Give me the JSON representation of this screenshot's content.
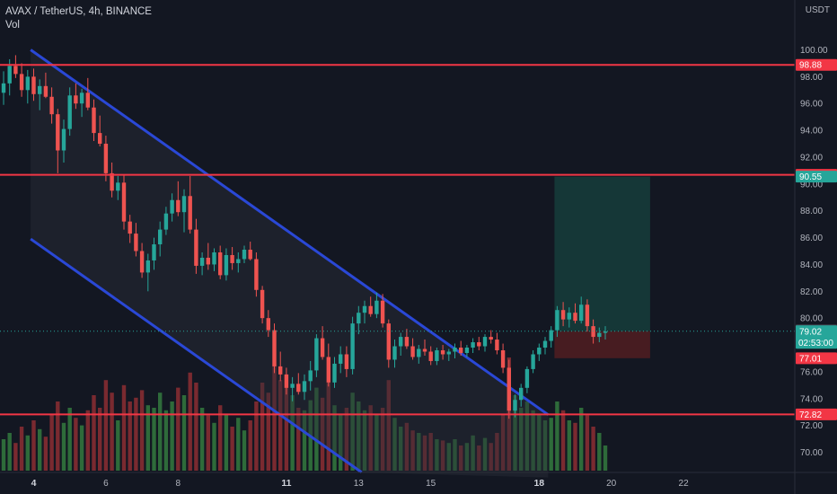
{
  "header": {
    "symbol": "AVAX / TetherUS, 4h, BINANCE",
    "indicator": "Vol"
  },
  "currency_label": "USDT",
  "colors": {
    "background": "#131722",
    "up": "#26a69a",
    "down": "#ef5350",
    "channel": "#2a48d6",
    "hline": "#f23645",
    "target_zone": "#163b3a",
    "stop_zone": "#4a1c22",
    "vol_up": "#2e6b3a",
    "vol_down": "#7a2a30"
  },
  "chart_data": {
    "type": "candlestick",
    "title": "AVAX / TetherUS, 4h, BINANCE",
    "ylim": [
      69,
      101
    ],
    "y_ticks": [
      "100.00",
      "98.00",
      "96.00",
      "94.00",
      "92.00",
      "90.00",
      "88.00",
      "86.00",
      "84.00",
      "82.00",
      "80.00",
      "78.00",
      "76.00",
      "74.00",
      "72.00",
      "70.00"
    ],
    "x_tick_labels": [
      {
        "label": "4",
        "bar": 5,
        "bold": true
      },
      {
        "label": "6",
        "bar": 17,
        "bold": false
      },
      {
        "label": "8",
        "bar": 29,
        "bold": false
      },
      {
        "label": "11",
        "bar": 47,
        "bold": true
      },
      {
        "label": "13",
        "bar": 59,
        "bold": false
      },
      {
        "label": "15",
        "bar": 71,
        "bold": false
      },
      {
        "label": "18",
        "bar": 89,
        "bold": true
      },
      {
        "label": "20",
        "bar": 101,
        "bold": false
      },
      {
        "label": "22",
        "bar": 113,
        "bold": false
      }
    ],
    "ohlc": [
      [
        96.8,
        98.4,
        95.9,
        97.5
      ],
      [
        97.5,
        99.3,
        96.6,
        98.8
      ],
      [
        98.8,
        99.6,
        97.9,
        98.2
      ],
      [
        98.2,
        99.0,
        96.5,
        97.0
      ],
      [
        97.0,
        98.5,
        96.0,
        98.0
      ],
      [
        98.0,
        98.6,
        96.2,
        96.7
      ],
      [
        96.7,
        97.8,
        95.5,
        97.3
      ],
      [
        97.3,
        98.3,
        96.4,
        96.5
      ],
      [
        96.5,
        97.2,
        94.5,
        95.2
      ],
      [
        95.2,
        95.6,
        90.8,
        92.5
      ],
      [
        92.5,
        94.8,
        91.6,
        94.1
      ],
      [
        94.1,
        97.2,
        93.6,
        96.6
      ],
      [
        96.6,
        97.5,
        95.6,
        96.0
      ],
      [
        96.0,
        97.1,
        95.0,
        96.8
      ],
      [
        96.8,
        97.9,
        95.5,
        95.7
      ],
      [
        95.7,
        96.3,
        93.2,
        93.8
      ],
      [
        93.8,
        95.1,
        92.8,
        93.0
      ],
      [
        93.0,
        93.6,
        90.2,
        90.8
      ],
      [
        90.8,
        91.6,
        89.0,
        89.5
      ],
      [
        89.5,
        90.6,
        88.8,
        90.1
      ],
      [
        90.1,
        90.7,
        86.6,
        87.2
      ],
      [
        87.2,
        87.7,
        85.6,
        86.3
      ],
      [
        86.3,
        87.1,
        84.6,
        85.0
      ],
      [
        85.0,
        85.6,
        83.0,
        83.4
      ],
      [
        83.4,
        84.8,
        82.0,
        84.3
      ],
      [
        84.3,
        86.0,
        83.6,
        85.5
      ],
      [
        85.5,
        87.2,
        84.6,
        86.6
      ],
      [
        86.6,
        88.3,
        86.2,
        87.8
      ],
      [
        87.8,
        89.3,
        87.2,
        88.8
      ],
      [
        88.8,
        90.2,
        87.6,
        87.9
      ],
      [
        87.9,
        89.6,
        86.4,
        89.1
      ],
      [
        89.1,
        90.6,
        86.3,
        86.6
      ],
      [
        86.6,
        87.4,
        83.3,
        83.9
      ],
      [
        83.9,
        84.9,
        83.2,
        84.5
      ],
      [
        84.5,
        85.6,
        83.6,
        84.0
      ],
      [
        84.0,
        85.2,
        83.5,
        84.9
      ],
      [
        84.9,
        85.4,
        82.9,
        83.2
      ],
      [
        83.2,
        85.2,
        82.8,
        84.7
      ],
      [
        84.7,
        85.3,
        83.6,
        84.1
      ],
      [
        84.1,
        84.9,
        83.4,
        84.4
      ],
      [
        84.4,
        85.4,
        84.1,
        85.1
      ],
      [
        85.1,
        85.7,
        84.3,
        84.4
      ],
      [
        84.4,
        84.9,
        81.6,
        82.1
      ],
      [
        82.1,
        82.4,
        79.6,
        80.0
      ],
      [
        80.0,
        80.6,
        78.6,
        79.1
      ],
      [
        79.1,
        79.6,
        75.9,
        76.4
      ],
      [
        76.4,
        77.5,
        75.3,
        75.8
      ],
      [
        75.8,
        76.3,
        74.3,
        74.8
      ],
      [
        74.8,
        75.6,
        73.8,
        75.1
      ],
      [
        75.1,
        75.9,
        74.3,
        74.5
      ],
      [
        74.5,
        75.8,
        73.9,
        75.3
      ],
      [
        75.3,
        76.8,
        74.6,
        76.1
      ],
      [
        76.1,
        78.8,
        75.6,
        78.5
      ],
      [
        78.5,
        79.4,
        76.9,
        77.1
      ],
      [
        77.1,
        78.1,
        74.9,
        75.2
      ],
      [
        75.2,
        77.1,
        74.8,
        76.6
      ],
      [
        76.6,
        77.9,
        75.9,
        77.3
      ],
      [
        77.3,
        77.9,
        75.6,
        76.2
      ],
      [
        76.2,
        80.1,
        75.8,
        79.6
      ],
      [
        79.6,
        80.9,
        78.8,
        80.4
      ],
      [
        80.4,
        81.3,
        79.6,
        80.9
      ],
      [
        80.9,
        81.6,
        80.1,
        80.3
      ],
      [
        80.3,
        81.9,
        80.0,
        81.3
      ],
      [
        81.3,
        81.8,
        79.3,
        79.6
      ],
      [
        79.6,
        79.9,
        76.3,
        76.9
      ],
      [
        76.9,
        78.4,
        76.3,
        77.9
      ],
      [
        77.9,
        78.9,
        77.2,
        78.6
      ],
      [
        78.6,
        79.2,
        77.7,
        77.9
      ],
      [
        77.9,
        78.5,
        76.9,
        77.1
      ],
      [
        77.1,
        78.0,
        76.6,
        77.7
      ],
      [
        77.7,
        78.4,
        77.2,
        77.5
      ],
      [
        77.5,
        77.9,
        76.5,
        76.8
      ],
      [
        76.8,
        77.8,
        76.5,
        77.6
      ],
      [
        77.6,
        78.0,
        76.9,
        77.3
      ],
      [
        77.3,
        77.7,
        76.8,
        77.5
      ],
      [
        77.5,
        78.1,
        77.0,
        77.8
      ],
      [
        77.8,
        78.3,
        77.2,
        77.4
      ],
      [
        77.4,
        78.0,
        77.1,
        77.8
      ],
      [
        77.8,
        78.5,
        77.4,
        78.2
      ],
      [
        78.2,
        78.6,
        77.6,
        77.9
      ],
      [
        77.9,
        78.8,
        77.5,
        78.6
      ],
      [
        78.6,
        79.1,
        78.1,
        78.4
      ],
      [
        78.4,
        78.9,
        77.3,
        77.6
      ],
      [
        77.6,
        78.1,
        75.9,
        76.3
      ],
      [
        76.3,
        76.9,
        72.5,
        73.1
      ],
      [
        73.1,
        74.3,
        72.6,
        73.9
      ],
      [
        73.9,
        75.1,
        73.4,
        74.8
      ],
      [
        74.8,
        76.4,
        74.4,
        76.2
      ],
      [
        76.2,
        77.6,
        75.9,
        77.3
      ],
      [
        77.3,
        78.1,
        76.8,
        77.8
      ],
      [
        77.8,
        78.6,
        77.3,
        78.3
      ],
      [
        78.3,
        79.4,
        77.8,
        79.1
      ],
      [
        79.1,
        80.9,
        78.6,
        80.6
      ],
      [
        80.6,
        81.2,
        79.4,
        79.9
      ],
      [
        79.9,
        80.8,
        79.3,
        80.4
      ],
      [
        80.4,
        81.1,
        79.6,
        79.8
      ],
      [
        79.8,
        81.6,
        79.6,
        81.0
      ],
      [
        81.0,
        81.4,
        79.0,
        79.4
      ],
      [
        79.4,
        79.9,
        78.1,
        78.6
      ],
      [
        78.6,
        79.3,
        78.2,
        78.9
      ],
      [
        78.9,
        79.4,
        78.4,
        79.0
      ]
    ],
    "volume_rel": [
      0.25,
      0.3,
      0.22,
      0.35,
      0.28,
      0.4,
      0.33,
      0.27,
      0.45,
      0.55,
      0.38,
      0.5,
      0.42,
      0.36,
      0.48,
      0.6,
      0.5,
      0.72,
      0.62,
      0.4,
      0.68,
      0.55,
      0.58,
      0.64,
      0.52,
      0.5,
      0.62,
      0.48,
      0.55,
      0.66,
      0.6,
      0.78,
      0.7,
      0.5,
      0.44,
      0.38,
      0.52,
      0.45,
      0.35,
      0.42,
      0.32,
      0.4,
      0.55,
      0.7,
      0.62,
      0.85,
      0.72,
      0.75,
      0.6,
      0.5,
      0.48,
      0.56,
      0.66,
      0.58,
      0.7,
      0.52,
      0.45,
      0.5,
      0.62,
      0.55,
      0.48,
      0.52,
      0.45,
      0.5,
      0.72,
      0.42,
      0.35,
      0.38,
      0.32,
      0.3,
      0.28,
      0.3,
      0.25,
      0.24,
      0.22,
      0.25,
      0.2,
      0.22,
      0.28,
      0.2,
      0.26,
      0.22,
      0.3,
      0.45,
      0.9,
      0.6,
      0.5,
      0.55,
      0.48,
      0.45,
      0.4,
      0.42,
      0.55,
      0.48,
      0.4,
      0.38,
      0.5,
      0.44,
      0.35,
      0.3,
      0.2
    ],
    "horizontal_levels": [
      98.88,
      90.68,
      72.82
    ],
    "channel": {
      "upper": {
        "bar0": 4.5,
        "price0": 100.0,
        "bar1": 90.5,
        "price1": 72.8
      },
      "lower": {
        "bar0": 4.5,
        "price0": 85.9,
        "bar1": 59.5,
        "price1": 68.5
      }
    },
    "position": {
      "entry": 79.02,
      "target": 90.55,
      "stop": 77.01,
      "start_bar": 92,
      "end_bar": 107
    },
    "last_price_line": 79.02,
    "price_tags": [
      {
        "price": 98.88,
        "label": "98.88",
        "color": "#f23645"
      },
      {
        "price": 90.68,
        "label": "90.68",
        "color": "#f23645"
      },
      {
        "price": 90.55,
        "label": "90.55",
        "color": "#26a69a"
      },
      {
        "price": 79.08,
        "label": "79.08",
        "color": "#434651"
      },
      {
        "price": 79.02,
        "label": "79.02",
        "color": "#26a69a",
        "sub": "02:53:00"
      },
      {
        "price": 77.01,
        "label": "77.01",
        "color": "#f23645"
      },
      {
        "price": 72.82,
        "label": "72.82",
        "color": "#f23645"
      }
    ]
  }
}
